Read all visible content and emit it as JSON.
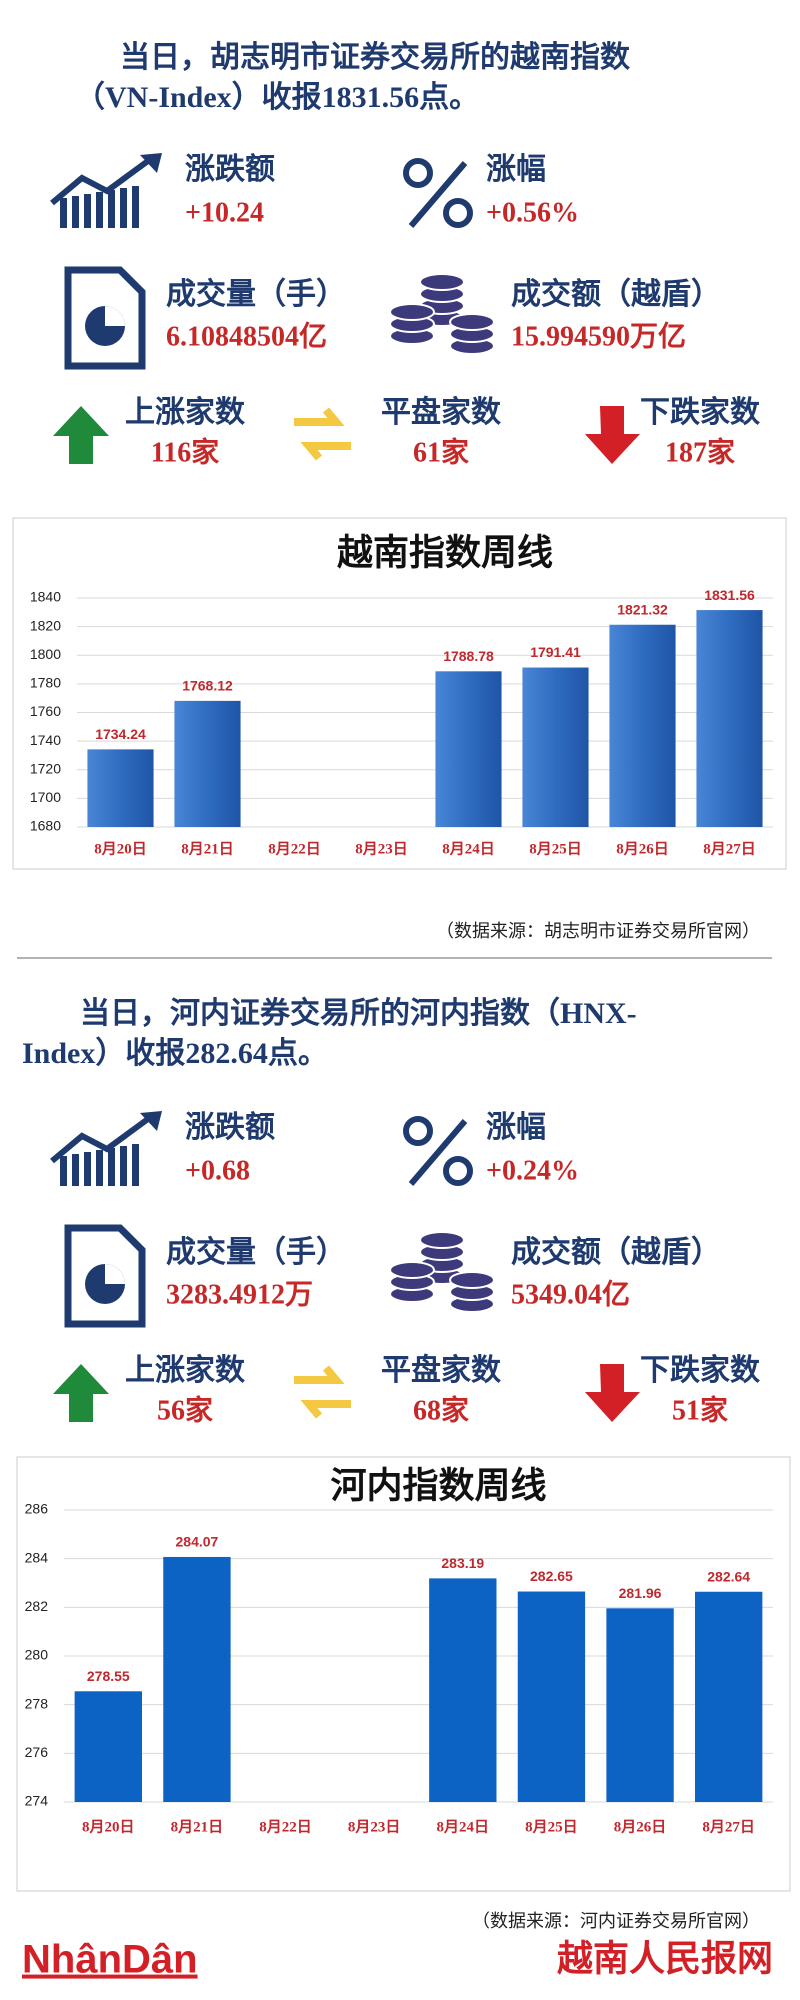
{
  "sections": [
    {
      "headline": [
        "当日，胡志明市证券交易所的越南指数",
        "（VN-Index）收报1831.56点。"
      ],
      "stats": [
        {
          "label": "涨跌额",
          "value": "+10.24"
        },
        {
          "label": "涨幅",
          "value": "+0.56%"
        },
        {
          "label": "成交量（手）",
          "value": "6.10848504亿"
        },
        {
          "label": "成交额（越盾）",
          "value": "15.994590万亿"
        },
        {
          "label": "上涨家数",
          "value": "116家"
        },
        {
          "label": "平盘家数",
          "value": "61家"
        },
        {
          "label": "下跌家数",
          "value": "187家"
        }
      ],
      "source": "（数据来源：胡志明市证券交易所官网）"
    },
    {
      "headline": [
        "当日，河内证券交易所的河内指数（HNX-",
        "Index）收报282.64点。"
      ],
      "stats": [
        {
          "label": "涨跌额",
          "value": "+0.68"
        },
        {
          "label": "涨幅",
          "value": "+0.24%"
        },
        {
          "label": "成交量（手）",
          "value": "3283.4912万"
        },
        {
          "label": "成交额（越盾）",
          "value": "5349.04亿"
        },
        {
          "label": "上涨家数",
          "value": "56家"
        },
        {
          "label": "平盘家数",
          "value": "68家"
        },
        {
          "label": "下跌家数",
          "value": "51家"
        }
      ],
      "source": "（数据来源：河内证券交易所官网）"
    }
  ],
  "chart_data": [
    {
      "type": "bar",
      "title": "越南指数周线",
      "categories": [
        "8月20日",
        "8月21日",
        "8月22日",
        "8月23日",
        "8月24日",
        "8月25日",
        "8月26日",
        "8月27日"
      ],
      "values": [
        1734.24,
        1768.12,
        null,
        null,
        1788.78,
        1791.41,
        1821.32,
        1831.56
      ],
      "color": "#2f6cc0",
      "label_color": "#c0282d",
      "ylim": [
        1680,
        1840
      ],
      "yticks": [
        1680,
        1700,
        1720,
        1740,
        1760,
        1780,
        1800,
        1820,
        1840
      ],
      "grid": true
    },
    {
      "type": "bar",
      "title": "河内指数周线",
      "categories": [
        "8月20日",
        "8月21日",
        "8月22日",
        "8月23日",
        "8月24日",
        "8月25日",
        "8月26日",
        "8月27日"
      ],
      "values": [
        278.55,
        284.07,
        null,
        null,
        283.19,
        282.65,
        281.96,
        282.64
      ],
      "color": "#0d63c4",
      "label_color": "#c0282d",
      "ylim": [
        274,
        286
      ],
      "yticks": [
        274,
        276,
        278,
        280,
        282,
        284,
        286
      ],
      "grid": true
    }
  ],
  "footer": {
    "logo": "NhânDân",
    "site": "越南人民报网"
  }
}
